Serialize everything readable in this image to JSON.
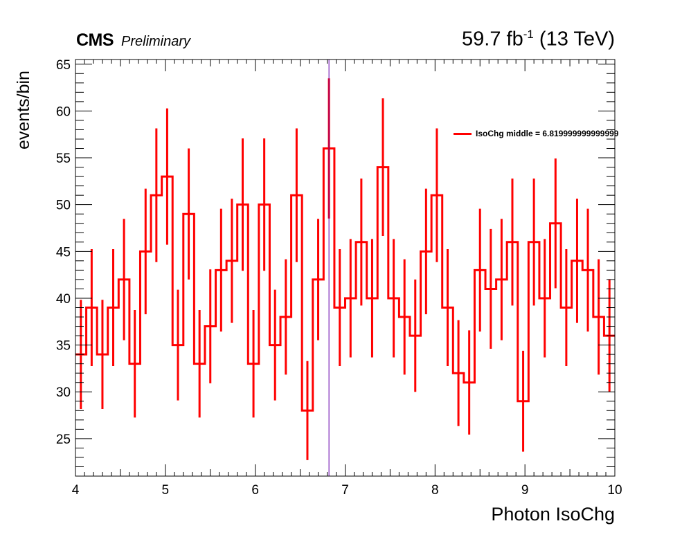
{
  "header": {
    "experiment": "CMS",
    "status": "Preliminary",
    "lumi_value": "59.7 fb",
    "lumi_exp": "-1",
    "lumi_energy": "(13 TeV)"
  },
  "colors": {
    "series": "#ff0000",
    "marker_line": "#6600aa",
    "axis": "#000000"
  },
  "chart_data": {
    "type": "line",
    "style": "step histogram with error bars",
    "xlabel": "Photon IsoChg",
    "ylabel": "events/bin",
    "xlim": [
      4,
      10
    ],
    "ylim": [
      21,
      65.5
    ],
    "xticks": [
      4,
      5,
      6,
      7,
      8,
      9,
      10
    ],
    "yticks": [
      25,
      30,
      35,
      40,
      45,
      50,
      55,
      60,
      65
    ],
    "bin_width": 0.12,
    "series": [
      {
        "name": "IsoChg middle = 6.819999999999999",
        "x": [
          4.06,
          4.18,
          4.3,
          4.42,
          4.54,
          4.66,
          4.78,
          4.9,
          5.02,
          5.14,
          5.26,
          5.38,
          5.5,
          5.62,
          5.74,
          5.86,
          5.98,
          6.1,
          6.22,
          6.34,
          6.46,
          6.58,
          6.7,
          6.82,
          6.94,
          7.06,
          7.18,
          7.3,
          7.42,
          7.54,
          7.66,
          7.78,
          7.9,
          8.02,
          8.14,
          8.26,
          8.38,
          8.5,
          8.62,
          8.74,
          8.86,
          8.98,
          9.1,
          9.22,
          9.34,
          9.46,
          9.58,
          9.7,
          9.82,
          9.94
        ],
        "values": [
          34,
          39,
          34,
          39,
          42,
          33,
          45,
          51,
          53,
          35,
          49,
          33,
          37,
          43,
          44,
          50,
          33,
          50,
          35,
          38,
          51,
          28,
          42,
          56,
          39,
          40,
          46,
          40,
          54,
          40,
          38,
          36,
          45,
          51,
          39,
          32,
          31,
          43,
          41,
          42,
          46,
          29,
          46,
          40,
          48,
          39,
          44,
          43,
          38,
          36
        ]
      }
    ],
    "vertical_line_x": 6.82,
    "legend": "top-right",
    "grid": false
  }
}
